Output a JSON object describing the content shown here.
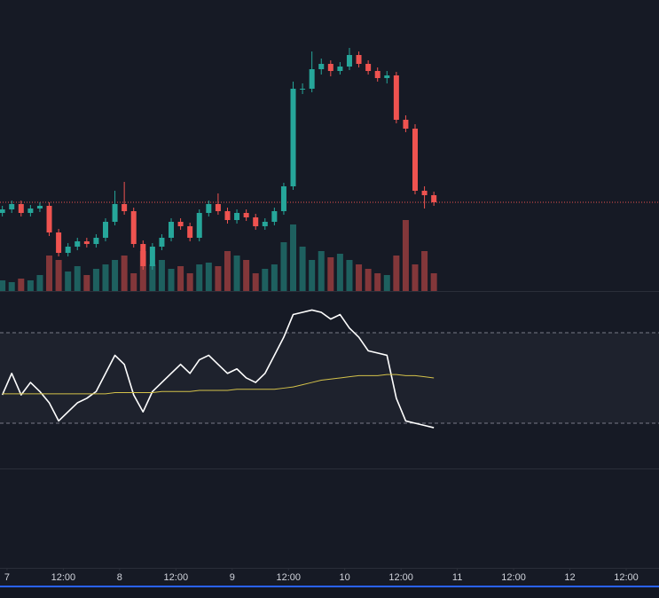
{
  "chart_data": [
    {
      "type": "candlestick",
      "x": [
        -1,
        1,
        3,
        5,
        7,
        9,
        11,
        13,
        15,
        17,
        19,
        21,
        23,
        25,
        27,
        29,
        31,
        33,
        35,
        37,
        39,
        41,
        43,
        45,
        47,
        49,
        51,
        53,
        55,
        57,
        59,
        61,
        63,
        65,
        67,
        69,
        71,
        73,
        75,
        77,
        79,
        81,
        83,
        85,
        87,
        89,
        91
      ],
      "open": [
        90,
        94,
        100,
        90,
        95,
        98,
        68,
        45,
        52,
        58,
        55,
        62,
        80,
        100,
        92,
        55,
        30,
        52,
        62,
        80,
        75,
        62,
        90,
        100,
        92,
        82,
        90,
        85,
        75,
        80,
        92,
        120,
        230,
        230,
        252,
        258,
        250,
        255,
        268,
        258,
        250,
        242,
        245,
        195,
        185,
        115,
        110
      ],
      "high": [
        98,
        104,
        104,
        99,
        102,
        102,
        72,
        56,
        62,
        62,
        66,
        84,
        115,
        125,
        96,
        59,
        56,
        66,
        84,
        84,
        79,
        94,
        104,
        112,
        96,
        94,
        94,
        89,
        84,
        96,
        124,
        238,
        236,
        272,
        264,
        262,
        260,
        276,
        272,
        262,
        254,
        250,
        249,
        200,
        190,
        120,
        114
      ],
      "low": [
        86,
        90,
        86,
        86,
        91,
        64,
        41,
        41,
        48,
        51,
        51,
        58,
        76,
        88,
        51,
        26,
        26,
        48,
        58,
        71,
        58,
        58,
        86,
        88,
        78,
        78,
        81,
        71,
        71,
        76,
        88,
        116,
        224,
        226,
        246,
        244,
        246,
        251,
        254,
        246,
        238,
        236,
        191,
        181,
        111,
        95,
        98
      ],
      "close": [
        94,
        100,
        90,
        95,
        98,
        68,
        45,
        52,
        58,
        55,
        62,
        80,
        100,
        92,
        55,
        30,
        52,
        62,
        80,
        75,
        62,
        90,
        100,
        92,
        82,
        90,
        85,
        75,
        80,
        92,
        120,
        230,
        230,
        252,
        258,
        250,
        255,
        268,
        258,
        250,
        242,
        245,
        195,
        185,
        115,
        110,
        102
      ],
      "volume": [
        12,
        10,
        14,
        12,
        18,
        40,
        35,
        22,
        28,
        18,
        25,
        30,
        35,
        40,
        20,
        45,
        30,
        35,
        25,
        28,
        20,
        30,
        32,
        28,
        45,
        40,
        35,
        20,
        25,
        30,
        55,
        75,
        50,
        35,
        45,
        38,
        42,
        35,
        30,
        25,
        20,
        18,
        40,
        80,
        30,
        45,
        20
      ],
      "up_color": "#26a69a",
      "down_color": "#ef5350",
      "xlim": [
        -1.5,
        139
      ],
      "ylim": [
        0,
        330
      ],
      "volume_lim": [
        0,
        330
      ],
      "xticks": [
        {
          "value": 0,
          "label": "7"
        },
        {
          "value": 12,
          "label": "12:00"
        },
        {
          "value": 24,
          "label": "8"
        },
        {
          "value": 36,
          "label": "12:00"
        },
        {
          "value": 48,
          "label": "9"
        },
        {
          "value": 60,
          "label": "12:00"
        },
        {
          "value": 72,
          "label": "10"
        },
        {
          "value": 84,
          "label": "12:00"
        },
        {
          "value": 96,
          "label": "11"
        },
        {
          "value": 108,
          "label": "12:00"
        },
        {
          "value": 120,
          "label": "12"
        },
        {
          "value": 132,
          "label": "12:00"
        }
      ]
    },
    {
      "type": "line",
      "series": [
        {
          "color": "#ffffff",
          "values": [
            42.5,
            52,
            42.5,
            48,
            44,
            39,
            31,
            35,
            39,
            41,
            44,
            52,
            60,
            56,
            42.5,
            35,
            44,
            48,
            52,
            56,
            52,
            58,
            60,
            56,
            52,
            54,
            50,
            48,
            52,
            60,
            68,
            78,
            79,
            80,
            79,
            76,
            78,
            72,
            68,
            62,
            61,
            60,
            41,
            31,
            30,
            29,
            28
          ]
        },
        {
          "color": "#d4c24a",
          "values": [
            43,
            43,
            43,
            43,
            43,
            43,
            43,
            43,
            43,
            43,
            43,
            43,
            43.5,
            43.5,
            43.5,
            43.5,
            43.5,
            44,
            44,
            44,
            44,
            44.5,
            44.5,
            44.5,
            44.5,
            45,
            45,
            45,
            45,
            45,
            45.5,
            46,
            47,
            48,
            49,
            49.5,
            50,
            50.5,
            51,
            51,
            51,
            51.5,
            51.5,
            51,
            51,
            50.5,
            50
          ]
        }
      ],
      "ylim": [
        10,
        88.4
      ],
      "bands": [
        30,
        70
      ]
    }
  ]
}
